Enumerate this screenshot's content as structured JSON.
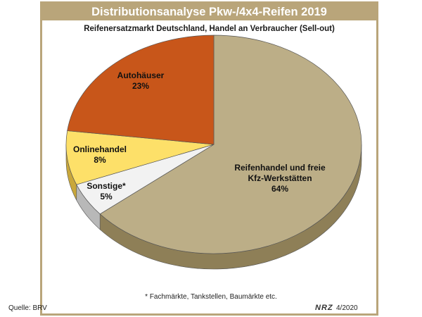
{
  "chart_data": {
    "type": "pie",
    "title": "Distributionsanalyse Pkw-/4x4-Reifen 2019",
    "subtitle": "Reifenersatzmarkt Deutschland, Handel an Verbraucher (Sell-out)",
    "slices": [
      {
        "label": "Reifenhandel und freie Kfz-Werkstätten",
        "value": 64,
        "value_label": "64%",
        "color": "#bcae87",
        "side_color": "#8e7f57"
      },
      {
        "label": "Sonstige*",
        "value": 5,
        "value_label": "5%",
        "color": "#f2f2f2",
        "side_color": "#b8b8b8"
      },
      {
        "label": "Onlinehandel",
        "value": 8,
        "value_label": "8%",
        "color": "#fde069",
        "side_color": "#c9a73a"
      },
      {
        "label": "Autohäuser",
        "value": 23,
        "value_label": "23%",
        "color": "#c8561a",
        "side_color": "#8a3a10"
      }
    ]
  },
  "footnote": "* Fachmärkte, Tankstellen, Baumärkte etc.",
  "source": "Quelle: BRV",
  "brand": "NRZ",
  "date": "4/2020"
}
